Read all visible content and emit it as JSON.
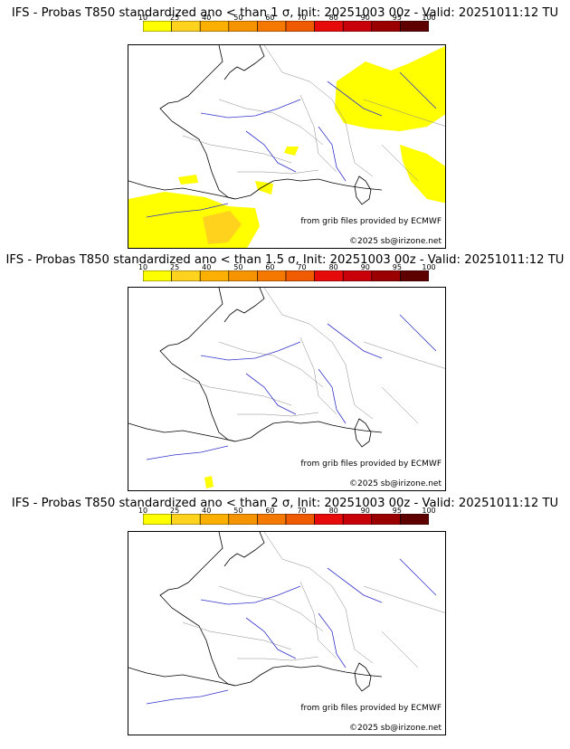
{
  "panels": [
    {
      "title": "IFS - Probas T850  standardized ano < than 1 σ, Init: 20251003 00z - Valid: 20251011:12 TU"
    },
    {
      "title": "IFS - Probas T850  standardized ano < than 1.5 σ, Init: 20251003 00z - Valid: 20251011:12 TU"
    },
    {
      "title": "IFS - Probas T850  standardized ano < than 2 σ, Init: 20251003 00z - Valid: 20251011:12 TU"
    }
  ],
  "scale": {
    "labels": [
      "10",
      "25",
      "40",
      "50",
      "60",
      "70",
      "80",
      "90",
      "95",
      "100"
    ],
    "colors": [
      "#ffff00",
      "#ffd21e",
      "#fbaf00",
      "#f59400",
      "#f57800",
      "#f05a00",
      "#e60a0a",
      "#c8000a",
      "#9b0000",
      "#5f0000"
    ]
  },
  "credits": {
    "source": "from grib files provided by ECMWF",
    "copyright": "©2025 sb@irizone.net"
  },
  "map": {
    "region": "France and western Europe",
    "icons": [
      "coastline",
      "rivers",
      "borders"
    ]
  }
}
